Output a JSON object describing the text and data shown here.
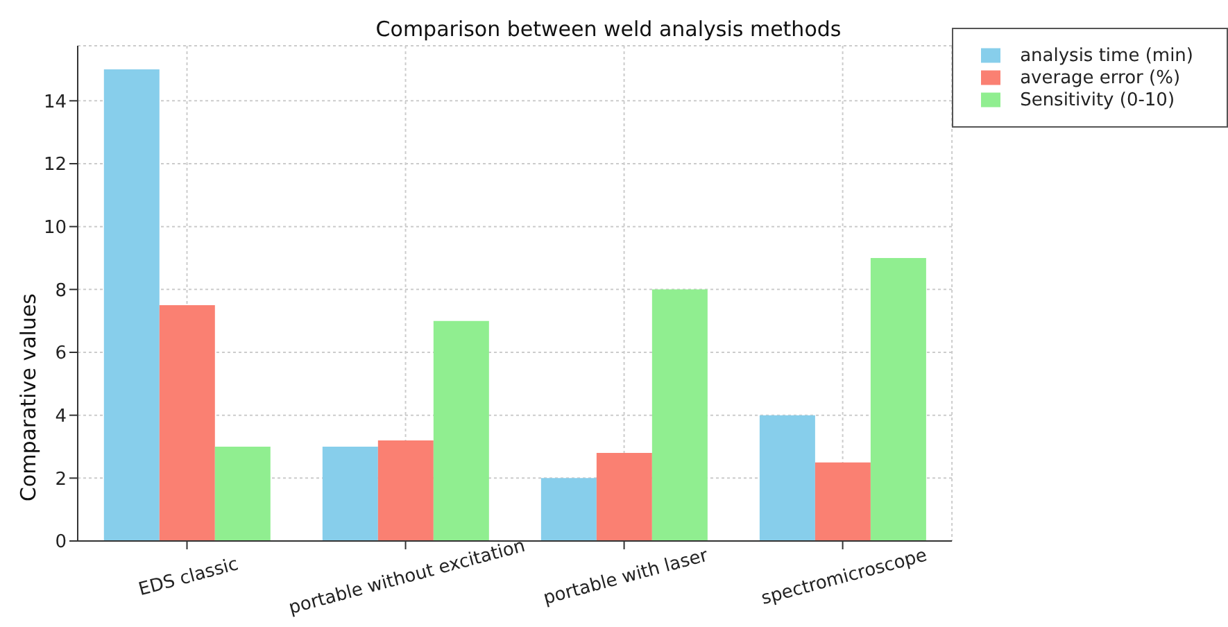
{
  "chart_data": {
    "type": "bar",
    "title": "Comparison between weld analysis methods",
    "ylabel": "Comparative values",
    "categories": [
      "EDS classic",
      "portable without excitation",
      "portable with laser",
      "spectromicroscope"
    ],
    "series": [
      {
        "name": "analysis time (min)",
        "color": "#87ceeb",
        "values": [
          15,
          3,
          2,
          4
        ]
      },
      {
        "name": "average error (%)",
        "color": "#fa8072",
        "values": [
          7.5,
          3.2,
          2.8,
          2.5
        ]
      },
      {
        "name": "Sensitivity (0-10)",
        "color": "#90ee90",
        "values": [
          3,
          7,
          8,
          9
        ]
      }
    ],
    "ylim": [
      0,
      15.75
    ],
    "yticks": [
      0,
      2,
      4,
      6,
      8,
      10,
      12,
      14
    ],
    "grid": true,
    "legend": "top right"
  }
}
